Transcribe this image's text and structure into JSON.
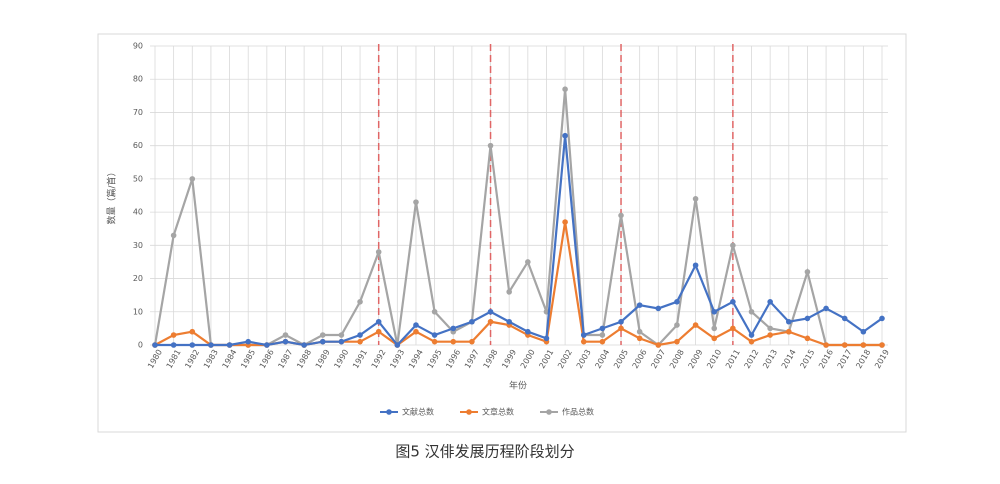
{
  "chart_data": {
    "type": "line",
    "title": "图5 汉俳发展历程阶段划分",
    "x_label": "年份",
    "y_label": "数量（篇/首）",
    "categories": [
      "1980",
      "1981",
      "1982",
      "1983",
      "1984",
      "1985",
      "1986",
      "1987",
      "1988",
      "1989",
      "1990",
      "1991",
      "1992",
      "1993",
      "1994",
      "1995",
      "1996",
      "1997",
      "1998",
      "1999",
      "2000",
      "2001",
      "2002",
      "2003",
      "2004",
      "2005",
      "2006",
      "2007",
      "2008",
      "2009",
      "2010",
      "2011",
      "2012",
      "2013",
      "2014",
      "2015",
      "2016",
      "2017",
      "2018",
      "2019"
    ],
    "series": [
      {
        "name": "文献总数",
        "color": "#4472c4",
        "values": [
          0,
          0,
          0,
          0,
          0,
          1,
          0,
          1,
          0,
          1,
          1,
          3,
          7,
          0,
          6,
          3,
          5,
          7,
          10,
          7,
          4,
          2,
          63,
          3,
          5,
          7,
          12,
          11,
          13,
          24,
          10,
          13,
          3,
          13,
          7,
          8,
          11,
          8,
          4,
          8
        ]
      },
      {
        "name": "文章总数",
        "color": "#ed7d31",
        "values": [
          0,
          3,
          4,
          0,
          0,
          0,
          0,
          1,
          0,
          1,
          1,
          1,
          4,
          0,
          4,
          1,
          1,
          1,
          7,
          6,
          3,
          1,
          37,
          1,
          1,
          5,
          2,
          0,
          1,
          6,
          2,
          5,
          1,
          3,
          4,
          2,
          0,
          0,
          0,
          0
        ]
      },
      {
        "name": "作品总数",
        "color": "#a5a5a5",
        "values": [
          0,
          33,
          50,
          0,
          0,
          0,
          0,
          3,
          0,
          3,
          3,
          13,
          28,
          0,
          43,
          10,
          4,
          7,
          60,
          16,
          25,
          10,
          77,
          3,
          3,
          39,
          4,
          0,
          6,
          44,
          5,
          30,
          10,
          5,
          4,
          22,
          0,
          0,
          0,
          0
        ]
      }
    ],
    "dividers": [
      1992,
      1998,
      2005,
      2011
    ],
    "divider_color": "#e06666",
    "ylim": [
      0,
      90
    ],
    "yticks": [
      0,
      10,
      20,
      30,
      40,
      50,
      60,
      70,
      80,
      90
    ],
    "grid": true,
    "legend": "bottom"
  }
}
